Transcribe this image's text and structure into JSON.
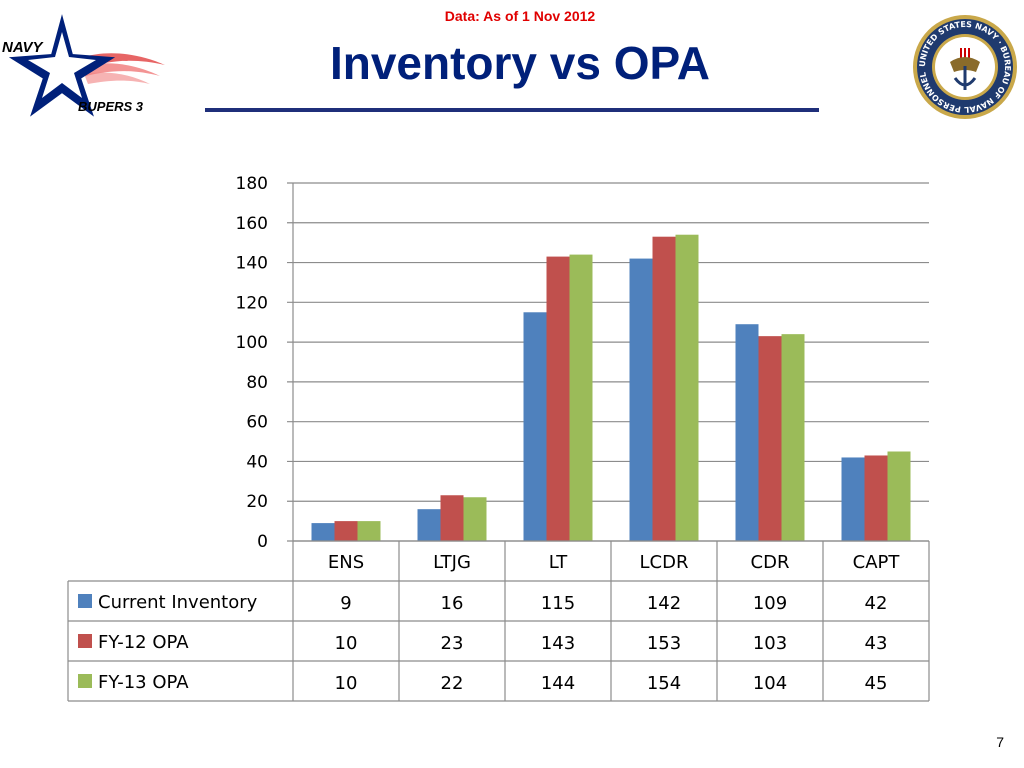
{
  "header": {
    "note": "Data: As of 1 Nov 2012",
    "title": "Inventory vs OPA",
    "logo_text_top": "NAVY",
    "logo_text_bottom": "BUPERS 3",
    "seal_text": "UNITED STATES NAVY · BUREAU OF NAVAL PERSONNEL"
  },
  "footer": {
    "page_number": "7"
  },
  "colors": {
    "title": "#00207a",
    "note": "#e00000",
    "rule": "#1f2f7a"
  },
  "chart_data": {
    "type": "bar",
    "categories": [
      "ENS",
      "LTJG",
      "LT",
      "LCDR",
      "CDR",
      "CAPT"
    ],
    "series": [
      {
        "name": "Current Inventory",
        "color": "#4f81bd",
        "values": [
          9,
          16,
          115,
          142,
          109,
          42
        ]
      },
      {
        "name": "FY-12 OPA",
        "color": "#c0504d",
        "values": [
          10,
          23,
          143,
          153,
          103,
          43
        ]
      },
      {
        "name": "FY-13 OPA",
        "color": "#9bbb59",
        "values": [
          10,
          22,
          144,
          154,
          104,
          45
        ]
      }
    ],
    "ylim": [
      0,
      180
    ],
    "yticks": [
      0,
      20,
      40,
      60,
      80,
      100,
      120,
      140,
      160,
      180
    ],
    "grid": true,
    "data_table": true
  }
}
